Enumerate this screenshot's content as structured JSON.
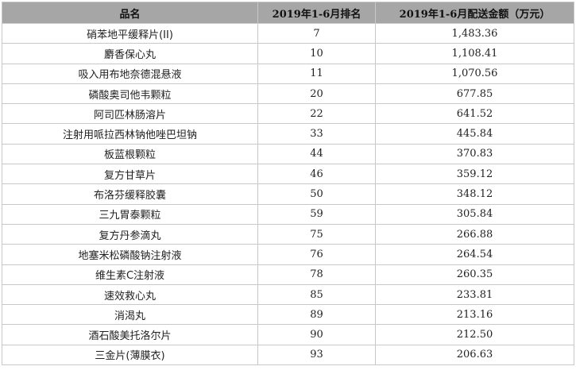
{
  "table": {
    "headers": [
      "品名",
      "2019年1-6月排名",
      "2019年1-6月配送金额（万元）"
    ],
    "rows": [
      [
        "硝苯地平缓释片(II)",
        "7",
        "1,483.36"
      ],
      [
        "麝香保心丸",
        "10",
        "1,108.41"
      ],
      [
        "吸入用布地奈德混悬液",
        "11",
        "1,070.56"
      ],
      [
        "磷酸奥司他韦颗粒",
        "20",
        "677.85"
      ],
      [
        "阿司匹林肠溶片",
        "22",
        "641.52"
      ],
      [
        "注射用哌拉西林钠他唑巴坦钠",
        "33",
        "445.84"
      ],
      [
        "板蓝根颗粒",
        "44",
        "370.83"
      ],
      [
        "复方甘草片",
        "46",
        "359.12"
      ],
      [
        "布洛芬缓释胶囊",
        "50",
        "348.12"
      ],
      [
        "三九胃泰颗粒",
        "59",
        "305.84"
      ],
      [
        "复方丹参滴丸",
        "75",
        "266.88"
      ],
      [
        "地塞米松磷酸钠注射液",
        "76",
        "264.54"
      ],
      [
        "维生素C注射液",
        "78",
        "260.35"
      ],
      [
        "速效救心丸",
        "85",
        "233.81"
      ],
      [
        "消渴丸",
        "89",
        "213.16"
      ],
      [
        "酒石酸美托洛尔片",
        "90",
        "212.50"
      ],
      [
        "三金片(薄膜衣)",
        "93",
        "206.63"
      ]
    ]
  }
}
